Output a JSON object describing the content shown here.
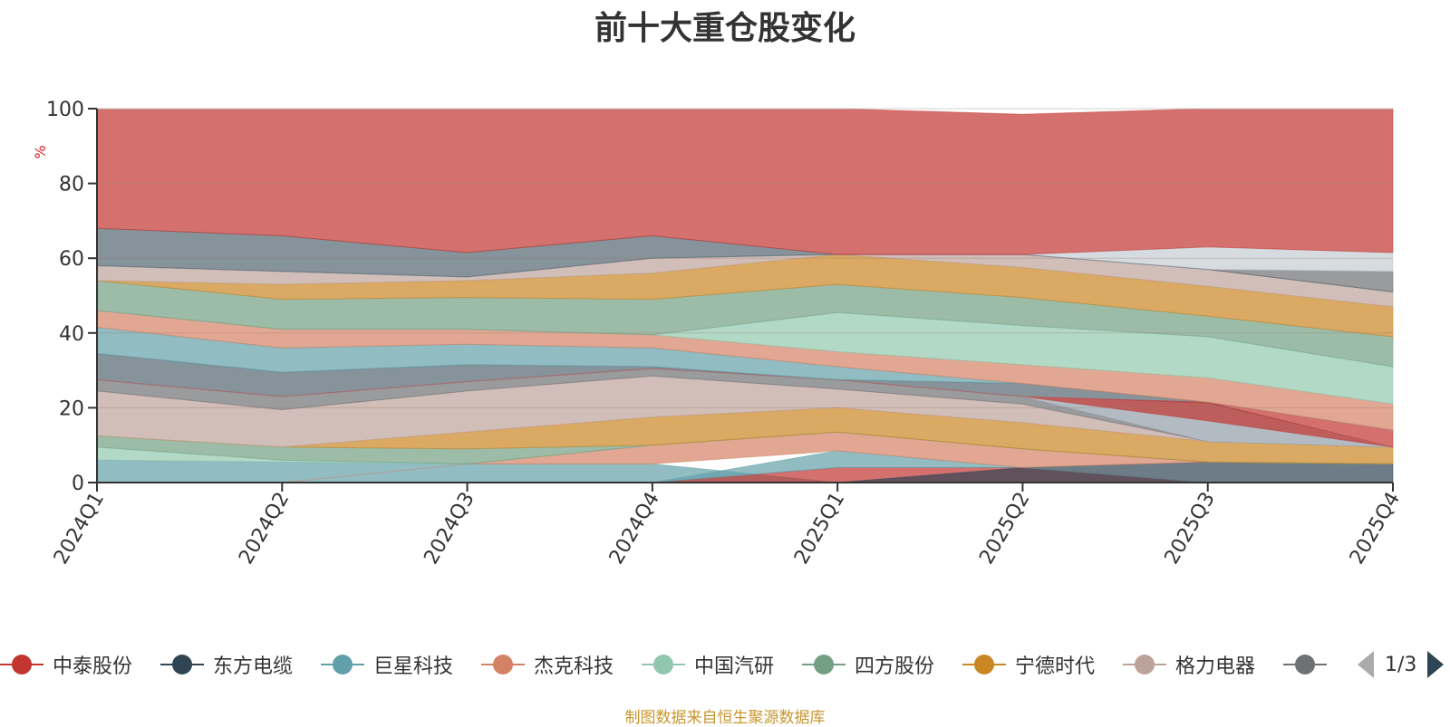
{
  "title": "前十大重仓股变化",
  "footer": "制图数据来自恒生聚源数据库",
  "pager": {
    "text": "1/3"
  },
  "legend": [
    {
      "name": "中泰股份",
      "color": "#c23531"
    },
    {
      "name": "东方电缆",
      "color": "#2f4554"
    },
    {
      "name": "巨星科技",
      "color": "#61a0a8"
    },
    {
      "name": "杰克科技",
      "color": "#d48265"
    },
    {
      "name": "中国汽研",
      "color": "#91c7ae"
    },
    {
      "name": "四方股份",
      "color": "#749f83"
    },
    {
      "name": "宁德时代",
      "color": "#ca8622"
    },
    {
      "name": "格力电器",
      "color": "#bda29a"
    },
    {
      "name": "",
      "color": "#6e7074"
    }
  ],
  "chart_data": {
    "type": "area",
    "title": "前十大重仓股变化",
    "ylabel": "%",
    "ylim": [
      0,
      100
    ],
    "yticks": [
      0,
      20,
      40,
      60,
      80,
      100
    ],
    "categories": [
      "2024Q1",
      "2024Q2",
      "2024Q3",
      "2024Q4",
      "2025Q1",
      "2025Q2",
      "2025Q3",
      "2025Q4"
    ],
    "bands": [
      {
        "name": "巨星科技-a",
        "color": "#61a0a8",
        "lower": [
          0,
          0,
          0,
          0,
          0,
          0,
          0,
          0
        ],
        "upper": [
          6,
          5.5,
          5,
          5,
          0,
          0,
          0,
          0
        ]
      },
      {
        "name": "中泰股份-a",
        "color": "#c23531",
        "lower": [
          0,
          0,
          0,
          0,
          0,
          0,
          0,
          0
        ],
        "upper": [
          0,
          0,
          0,
          0,
          4,
          4,
          0,
          0
        ]
      },
      {
        "name": "东方电缆-a",
        "color": "#2f4554",
        "lower": [
          0,
          0,
          0,
          0,
          0,
          0,
          0,
          0
        ],
        "upper": [
          0,
          0,
          0,
          0,
          0,
          4,
          5.5,
          5
        ]
      },
      {
        "name": "巨星科技-b",
        "color": "#61a0a8",
        "lower": [
          0,
          0,
          0,
          0,
          4,
          4,
          0,
          0
        ],
        "upper": [
          0,
          0,
          0,
          0,
          8.5,
          4,
          0,
          0
        ]
      },
      {
        "name": "杰克科技-a",
        "color": "#d48265",
        "lower": [
          0,
          0,
          5,
          5,
          8.5,
          4,
          5.5,
          5
        ],
        "upper": [
          0,
          0,
          5,
          10,
          13.5,
          9,
          5.5,
          5
        ]
      },
      {
        "name": "中国汽研-a",
        "color": "#91c7ae",
        "lower": [
          6,
          5.5,
          5,
          10,
          13.5,
          9,
          5.5,
          5
        ],
        "upper": [
          9.5,
          6,
          5,
          10,
          13.5,
          9,
          5.5,
          5
        ]
      },
      {
        "name": "四方股份-a",
        "color": "#749f83",
        "lower": [
          9.5,
          6,
          5,
          10,
          13.5,
          9,
          5.5,
          5
        ],
        "upper": [
          12.5,
          9.5,
          9,
          10,
          13.5,
          9,
          5.5,
          5
        ]
      },
      {
        "name": "宁德时代-a",
        "color": "#ca8622",
        "lower": [
          12.5,
          9.5,
          9,
          10,
          13.5,
          9,
          5.5,
          5
        ],
        "upper": [
          12.5,
          9.5,
          13.5,
          17.5,
          20,
          16,
          11,
          9.5
        ]
      },
      {
        "name": "格力电器-a",
        "color": "#bda29a",
        "lower": [
          12.5,
          9.5,
          13.5,
          17.5,
          20,
          16,
          11,
          9.5
        ],
        "upper": [
          24.5,
          19.5,
          24.5,
          28.5,
          25,
          21,
          11,
          9.5
        ]
      },
      {
        "name": "灰色-a",
        "color": "#6e7074",
        "lower": [
          24.5,
          19.5,
          24.5,
          28.5,
          25,
          21,
          11,
          9.5
        ],
        "upper": [
          27.5,
          23,
          27,
          30.5,
          27.5,
          23,
          11,
          9.5
        ]
      },
      {
        "name": "石板-a",
        "color": "#546570",
        "lower": [
          27.5,
          23,
          27,
          30.5,
          27.5,
          23,
          11,
          9.5
        ],
        "upper": [
          34.5,
          29.5,
          31.5,
          31,
          27.5,
          26.5,
          21.5,
          9.5
        ]
      },
      {
        "name": "浅灰-a",
        "color": "#c4ccd3",
        "lower": [
          27.5,
          23,
          27,
          30.5,
          27.5,
          23,
          11,
          9.5
        ],
        "upper": [
          27.5,
          23,
          27,
          30.5,
          27.5,
          23,
          21,
          9.5
        ]
      },
      {
        "name": "中泰股份-b",
        "color": "#c23531",
        "lower": [
          27.5,
          23,
          27,
          30.5,
          27.5,
          23,
          16.5,
          9.5
        ],
        "upper": [
          27.5,
          23,
          27,
          30.5,
          27.5,
          23,
          21.5,
          14
        ]
      },
      {
        "name": "巨星科技-c",
        "color": "#61a0a8",
        "lower": [
          34.5,
          29.5,
          31.5,
          31,
          27.5,
          26.5,
          21.5,
          14
        ],
        "upper": [
          41.5,
          36,
          37,
          36,
          31,
          26.5,
          21.5,
          14
        ]
      },
      {
        "name": "杰克科技-b",
        "color": "#d48265",
        "lower": [
          41.5,
          36,
          37,
          36,
          31,
          26.5,
          21.5,
          14
        ],
        "upper": [
          46,
          41,
          41,
          39.5,
          35,
          31.5,
          28,
          21
        ]
      },
      {
        "name": "中国汽研-b",
        "color": "#91c7ae",
        "lower": [
          46,
          41,
          41,
          39.5,
          35,
          31.5,
          28,
          21
        ],
        "upper": [
          46,
          41,
          41,
          39.5,
          45.5,
          42,
          39,
          31
        ]
      },
      {
        "name": "四方股份-b",
        "color": "#749f83",
        "lower": [
          46,
          41,
          41,
          39.5,
          45.5,
          42,
          39,
          31
        ],
        "upper": [
          54,
          49,
          49.5,
          49,
          53,
          49.5,
          44.5,
          39
        ]
      },
      {
        "name": "宁德时代-b",
        "color": "#ca8622",
        "lower": [
          54,
          49,
          49.5,
          49,
          53,
          49.5,
          44.5,
          39
        ],
        "upper": [
          54,
          53,
          54,
          56,
          61,
          57.5,
          52.5,
          47
        ]
      },
      {
        "name": "格力电器-b",
        "color": "#bda29a",
        "lower": [
          54,
          53,
          54,
          56,
          61,
          57.5,
          52.5,
          47
        ],
        "upper": [
          58,
          56.5,
          55,
          60,
          61,
          61,
          57,
          51
        ]
      },
      {
        "name": "灰色-b",
        "color": "#6e7074",
        "lower": [
          58,
          56.5,
          55,
          60,
          61,
          61,
          57,
          51
        ],
        "upper": [
          58,
          56.5,
          55,
          60,
          61,
          61,
          57,
          56.5
        ]
      },
      {
        "name": "浅灰-b",
        "color": "#c4ccd3",
        "lower": [
          58,
          56.5,
          55,
          60,
          61,
          61,
          57,
          56.5
        ],
        "upper": [
          58,
          56.5,
          55,
          60,
          61,
          61,
          63,
          61.5
        ]
      },
      {
        "name": "石板-b",
        "color": "#546570",
        "lower": [
          58,
          56.5,
          55,
          60,
          61,
          61,
          57,
          51
        ],
        "upper": [
          68,
          66,
          61.5,
          66,
          61,
          61,
          57,
          51
        ]
      },
      {
        "name": "中泰股份-c",
        "color": "#c23531",
        "lower": [
          68,
          66,
          61.5,
          66,
          61,
          61,
          63,
          61.5
        ],
        "upper": [
          100,
          100,
          100,
          100,
          100,
          98.5,
          100,
          100
        ]
      }
    ]
  }
}
